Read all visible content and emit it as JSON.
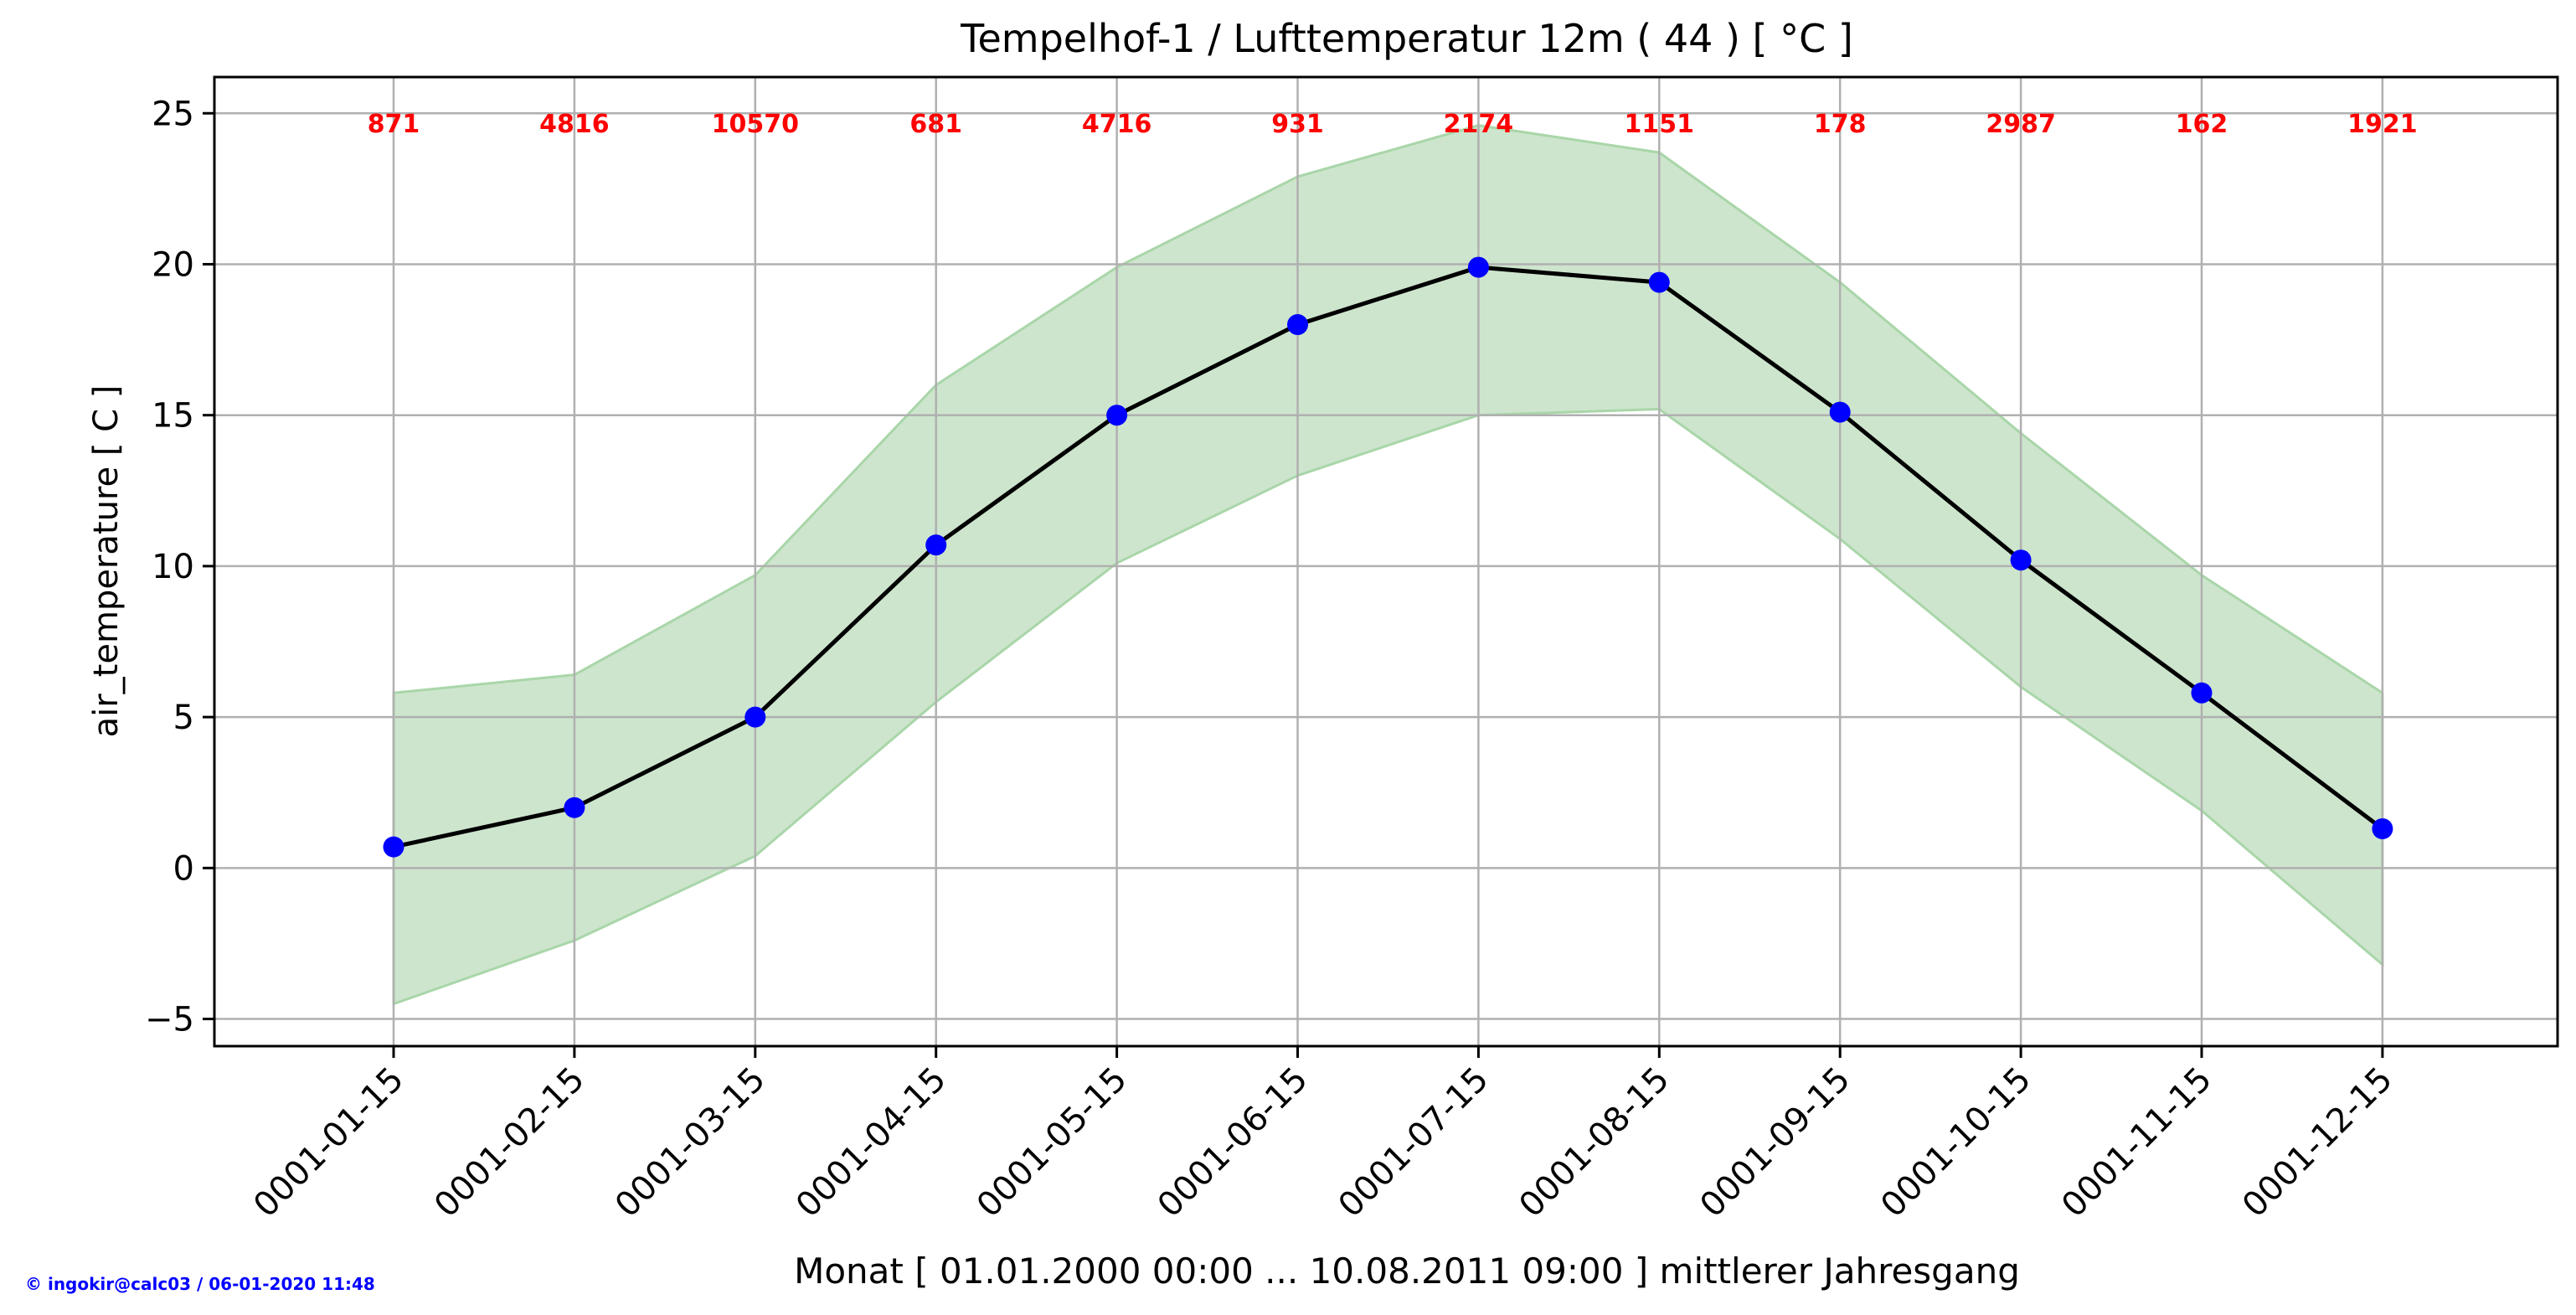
{
  "chart_data": {
    "type": "line",
    "title": "Tempelhof-1 / Lufttemperatur 12m ( 44 ) [ °C ]",
    "xlabel": "Monat [ 01.01.2000 00:00 ... 10.08.2011 09:00 ] mittlerer Jahresgang",
    "ylabel": "air_temperature [ C ]",
    "categories": [
      "0001-01-15",
      "0001-02-15",
      "0001-03-15",
      "0001-04-15",
      "0001-05-15",
      "0001-06-15",
      "0001-07-15",
      "0001-08-15",
      "0001-09-15",
      "0001-10-15",
      "0001-11-15",
      "0001-12-15"
    ],
    "series": [
      {
        "values": [
          0.7,
          2.0,
          5.0,
          10.7,
          15.0,
          18.0,
          19.9,
          19.4,
          15.1,
          10.2,
          5.8,
          1.3
        ],
        "color": "#0000ff",
        "line_color": "#000000"
      }
    ],
    "band": {
      "upper": [
        5.8,
        6.4,
        9.7,
        16.0,
        19.9,
        22.9,
        24.6,
        23.7,
        19.4,
        14.4,
        9.7,
        5.8
      ],
      "lower": [
        -4.5,
        -2.4,
        0.4,
        5.5,
        10.1,
        13.0,
        15.0,
        15.2,
        10.9,
        6.0,
        1.9,
        -3.2
      ],
      "color": "#cde5cd",
      "edge_color": "#a9d6a9"
    },
    "counts": [
      "871",
      "4816",
      "10570",
      "681",
      "4716",
      "931",
      "2174",
      "1151",
      "178",
      "2987",
      "162",
      "1921"
    ],
    "counts_color": "#ff0000",
    "ylim": [
      -5.9,
      26.2
    ],
    "yticks": [
      -5,
      0,
      5,
      10,
      15,
      20,
      25
    ],
    "ytick_labels": [
      "−5",
      "0",
      "5",
      "10",
      "15",
      "20",
      "25"
    ],
    "grid": true
  },
  "footer": {
    "credit": "© ingokir@calc03 / 06-01-2020 11:48",
    "credit_color": "#0000ff"
  }
}
